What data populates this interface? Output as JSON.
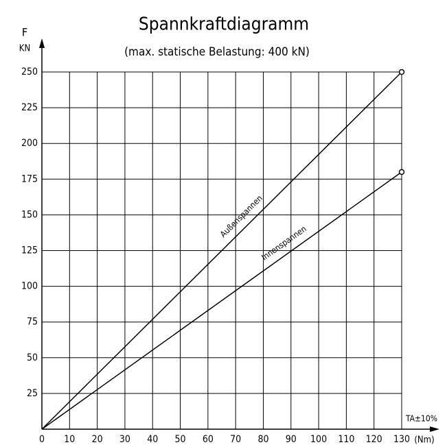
{
  "chart_data": {
    "type": "line",
    "title": "Spannkraftdiagramm",
    "subtitle": "(max. statische Belastung: 400 kN)",
    "y_label": "F",
    "y_unit": "KN",
    "x_label": "TA±10%",
    "x_unit": "(Nm)",
    "x": [
      0,
      130
    ],
    "series": [
      {
        "name": "Außenspannen",
        "color": "#000000",
        "values": [
          0,
          250
        ]
      },
      {
        "name": "Innenspannen",
        "color": "#000000",
        "values": [
          0,
          180
        ]
      }
    ],
    "xlim": [
      0,
      130
    ],
    "xticks": [
      0,
      10,
      20,
      30,
      40,
      50,
      60,
      70,
      80,
      90,
      100,
      110,
      120,
      130
    ],
    "ylim": [
      0,
      250
    ],
    "yticks": [
      25,
      50,
      75,
      100,
      125,
      150,
      175,
      200,
      225,
      250
    ],
    "grid": true
  }
}
